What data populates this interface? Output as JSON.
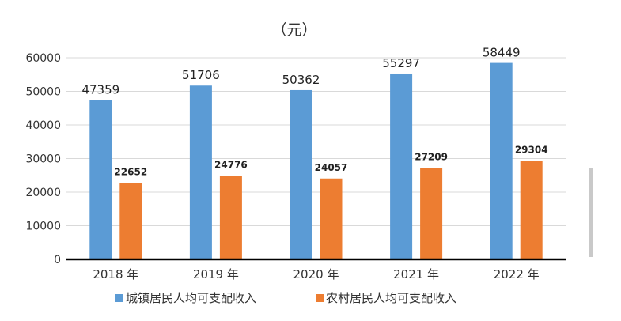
{
  "chart_data": {
    "type": "bar",
    "title": "",
    "unit_label": "（元）",
    "xlabel": "",
    "ylabel": "",
    "categories": [
      "2018 年",
      "2019 年",
      "2020 年",
      "2021 年",
      "2022 年"
    ],
    "series": [
      {
        "name": "城镇居民人均可支配收入",
        "color": "#5b9bd5",
        "values": [
          47359,
          51706,
          50362,
          55297,
          58449
        ]
      },
      {
        "name": "农村居民人均可支配收入",
        "color": "#ed7d31",
        "values": [
          22652,
          24776,
          24057,
          27209,
          29304
        ]
      }
    ],
    "ylim": [
      0,
      60000
    ],
    "yticks": [
      "0",
      "10000",
      "20000",
      "30000",
      "40000",
      "50000",
      "60000"
    ],
    "grid": true,
    "legend_position": "bottom"
  }
}
